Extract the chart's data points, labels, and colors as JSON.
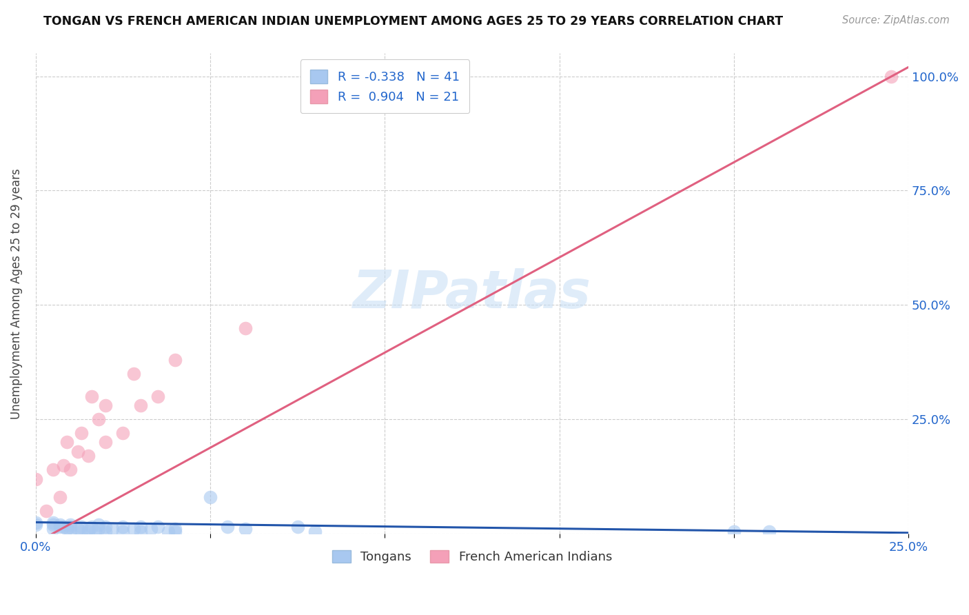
{
  "title": "TONGAN VS FRENCH AMERICAN INDIAN UNEMPLOYMENT AMONG AGES 25 TO 29 YEARS CORRELATION CHART",
  "source": "Source: ZipAtlas.com",
  "ylabel": "Unemployment Among Ages 25 to 29 years",
  "watermark": "ZIPatlas",
  "blue_R": -0.338,
  "blue_N": 41,
  "pink_R": 0.904,
  "pink_N": 21,
  "legend_label_blue": "Tongans",
  "legend_label_pink": "French American Indians",
  "xlim": [
    0.0,
    0.25
  ],
  "ylim": [
    0.0,
    1.05
  ],
  "blue_color": "#a8c8f0",
  "pink_color": "#f4a0b8",
  "blue_line_color": "#2255aa",
  "pink_line_color": "#e06080",
  "grid_color": "#cccccc",
  "background_color": "#ffffff",
  "blue_scatter_x": [
    0.0,
    0.0,
    0.005,
    0.005,
    0.005,
    0.007,
    0.007,
    0.008,
    0.009,
    0.01,
    0.01,
    0.01,
    0.012,
    0.013,
    0.013,
    0.015,
    0.015,
    0.016,
    0.017,
    0.018,
    0.018,
    0.02,
    0.02,
    0.022,
    0.025,
    0.025,
    0.028,
    0.03,
    0.03,
    0.033,
    0.035,
    0.038,
    0.04,
    0.04,
    0.05,
    0.055,
    0.06,
    0.075,
    0.08,
    0.2,
    0.21
  ],
  "blue_scatter_y": [
    0.02,
    0.025,
    0.01,
    0.02,
    0.025,
    0.015,
    0.02,
    0.015,
    0.01,
    0.005,
    0.015,
    0.02,
    0.01,
    0.005,
    0.015,
    0.005,
    0.01,
    0.015,
    0.005,
    0.01,
    0.02,
    0.005,
    0.015,
    0.01,
    0.005,
    0.015,
    0.01,
    0.005,
    0.015,
    0.01,
    0.015,
    0.005,
    0.005,
    0.01,
    0.08,
    0.015,
    0.01,
    0.015,
    0.005,
    0.005,
    0.005
  ],
  "pink_scatter_x": [
    0.0,
    0.003,
    0.005,
    0.007,
    0.008,
    0.009,
    0.01,
    0.012,
    0.013,
    0.015,
    0.016,
    0.018,
    0.02,
    0.02,
    0.025,
    0.028,
    0.03,
    0.035,
    0.04,
    0.06,
    0.245
  ],
  "pink_scatter_y": [
    0.12,
    0.05,
    0.14,
    0.08,
    0.15,
    0.2,
    0.14,
    0.18,
    0.22,
    0.17,
    0.3,
    0.25,
    0.2,
    0.28,
    0.22,
    0.35,
    0.28,
    0.3,
    0.38,
    0.45,
    1.0
  ],
  "blue_trend_x": [
    0.0,
    0.25
  ],
  "blue_trend_y": [
    0.025,
    0.002
  ],
  "pink_trend_x": [
    0.0,
    0.25
  ],
  "pink_trend_y": [
    -0.02,
    1.02
  ]
}
